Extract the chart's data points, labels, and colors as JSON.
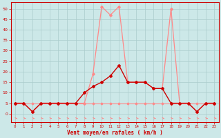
{
  "x": [
    0,
    1,
    2,
    3,
    4,
    5,
    6,
    7,
    8,
    9,
    10,
    11,
    12,
    13,
    14,
    15,
    16,
    17,
    18,
    19,
    20,
    21,
    22,
    23
  ],
  "rafales": [
    5,
    5,
    1,
    5,
    5,
    5,
    5,
    5,
    5,
    19,
    51,
    47,
    51,
    15,
    15,
    15,
    12,
    12,
    50,
    5,
    5,
    1,
    5,
    5
  ],
  "moyen": [
    5,
    5,
    1,
    5,
    5,
    5,
    5,
    5,
    10,
    13,
    15,
    18,
    23,
    15,
    15,
    15,
    12,
    12,
    5,
    5,
    5,
    1,
    5,
    5
  ],
  "flat": [
    5,
    5,
    5,
    5,
    5,
    5,
    5,
    5,
    5,
    5,
    5,
    5,
    5,
    5,
    5,
    5,
    5,
    5,
    5,
    5,
    5,
    5,
    5,
    5
  ],
  "bg_color": "#cce8e8",
  "grid_color": "#aacccc",
  "line_color_light": "#ff8888",
  "line_color_dark": "#cc0000",
  "flat_color": "#ff8888",
  "arrow_color": "#ff8888",
  "xlabel": "Vent moyen/en rafales ( km/h )",
  "xlabel_color": "#cc0000",
  "tick_color": "#cc0000",
  "spine_color": "#cc0000",
  "yticks": [
    0,
    5,
    10,
    15,
    20,
    25,
    30,
    35,
    40,
    45,
    50
  ],
  "xticks": [
    0,
    1,
    2,
    3,
    4,
    5,
    6,
    7,
    8,
    9,
    10,
    11,
    12,
    13,
    14,
    15,
    16,
    17,
    18,
    19,
    20,
    21,
    22,
    23
  ],
  "xlim": [
    -0.5,
    23.5
  ],
  "ylim": [
    -4,
    53
  ]
}
